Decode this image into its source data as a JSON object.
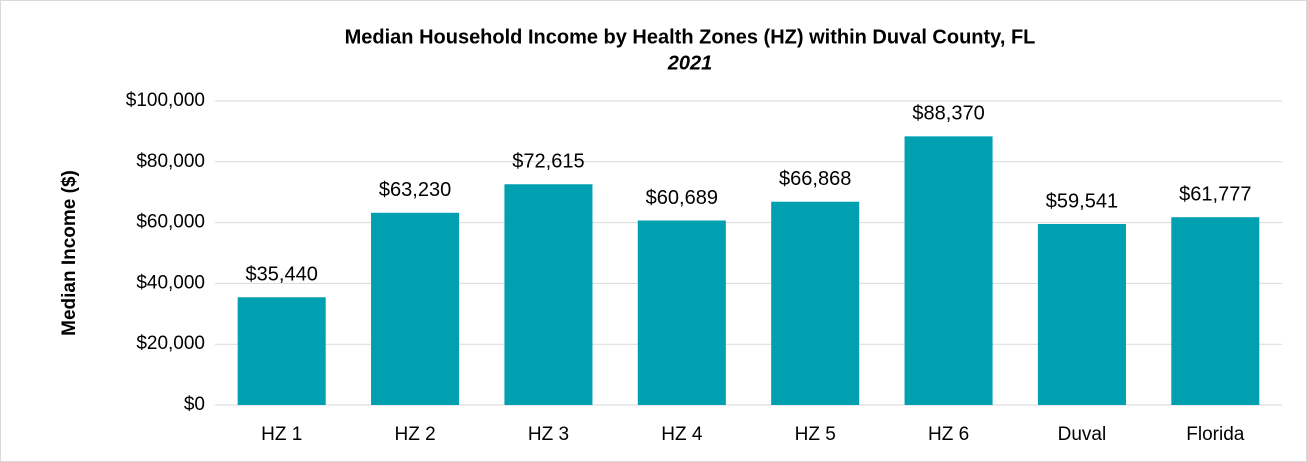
{
  "chart_data": {
    "type": "bar",
    "title": "Median Household Income by Health Zones (HZ) within Duval County, FL",
    "subtitle": "2021",
    "y_axis_label": "Median Income ($)",
    "categories": [
      "HZ 1",
      "HZ 2",
      "HZ 3",
      "HZ 4",
      "HZ 5",
      "HZ 6",
      "Duval",
      "Florida"
    ],
    "values": [
      35440,
      63230,
      72615,
      60689,
      66868,
      88370,
      59541,
      61777
    ],
    "value_labels": [
      "$35,440",
      "$63,230",
      "$72,615",
      "$60,689",
      "$66,868",
      "$88,370",
      "$59,541",
      "$61,777"
    ],
    "color": "#00a0b0",
    "ylim": [
      0,
      100000
    ],
    "yticks": [
      {
        "value": 0,
        "label": "$0"
      },
      {
        "value": 20000,
        "label": "$20,000"
      },
      {
        "value": 40000,
        "label": "$40,000"
      },
      {
        "value": 60000,
        "label": "$60,000"
      },
      {
        "value": 80000,
        "label": "$80,000"
      },
      {
        "value": 100000,
        "label": "$100,000"
      }
    ],
    "grid": true
  }
}
